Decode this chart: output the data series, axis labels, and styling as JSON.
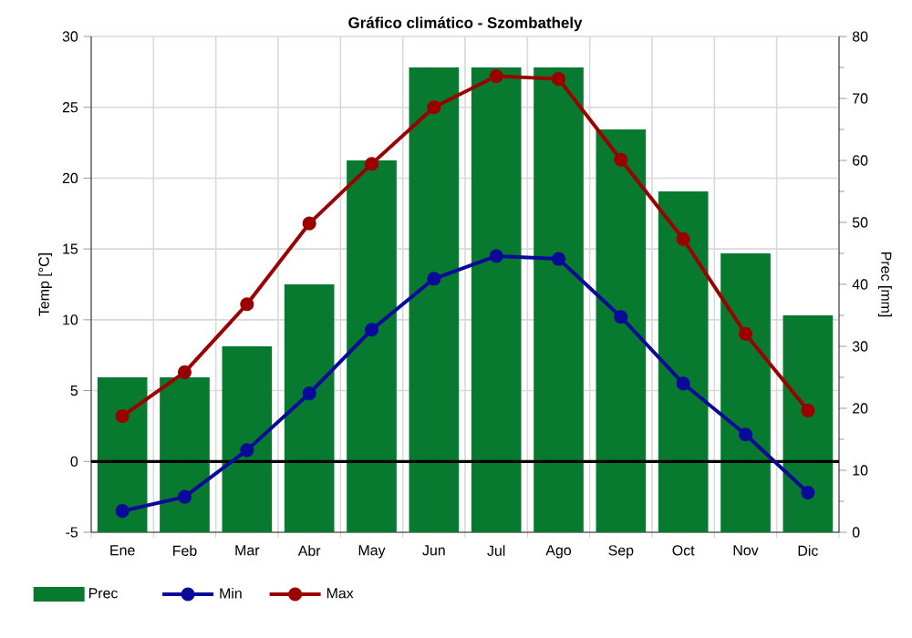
{
  "chart_data": {
    "type": "bar",
    "title": "Gráfico climático - Szombathely",
    "ylabel": "Temp [°C]",
    "y2label": "Prec [mm]",
    "categories": [
      "Ene",
      "Feb",
      "Mar",
      "Abr",
      "May",
      "Jun",
      "Jul",
      "Ago",
      "Sep",
      "Oct",
      "Nov",
      "Dic"
    ],
    "series": [
      {
        "name": "Prec",
        "axis": "y2",
        "color": "#077a30",
        "values": [
          25,
          25,
          30,
          40,
          60,
          75,
          75,
          75,
          65,
          55,
          45,
          35
        ]
      },
      {
        "name": "Min",
        "type": "line",
        "color": "#0a0a9a",
        "values": [
          -3.5,
          -2.5,
          0.8,
          4.8,
          9.3,
          12.9,
          14.5,
          14.3,
          10.2,
          5.5,
          1.9,
          -2.2
        ]
      },
      {
        "name": "Max",
        "type": "line",
        "color": "#9b0000",
        "values": [
          3.2,
          6.3,
          11.1,
          16.8,
          21.0,
          25.0,
          27.2,
          27.0,
          21.3,
          15.7,
          9.0,
          3.6
        ]
      }
    ],
    "ylim": [
      -5,
      30
    ],
    "yticks": [
      -5,
      0,
      5,
      10,
      15,
      20,
      25,
      30
    ],
    "y2lim": [
      0,
      80
    ],
    "y2ticks": [
      0,
      10,
      20,
      30,
      40,
      50,
      60,
      70,
      80
    ],
    "grid": true,
    "legend": "bottom",
    "marker": "circle",
    "ref_lines": [
      {
        "axis": "y",
        "value": 0,
        "color": "#000000"
      }
    ]
  }
}
